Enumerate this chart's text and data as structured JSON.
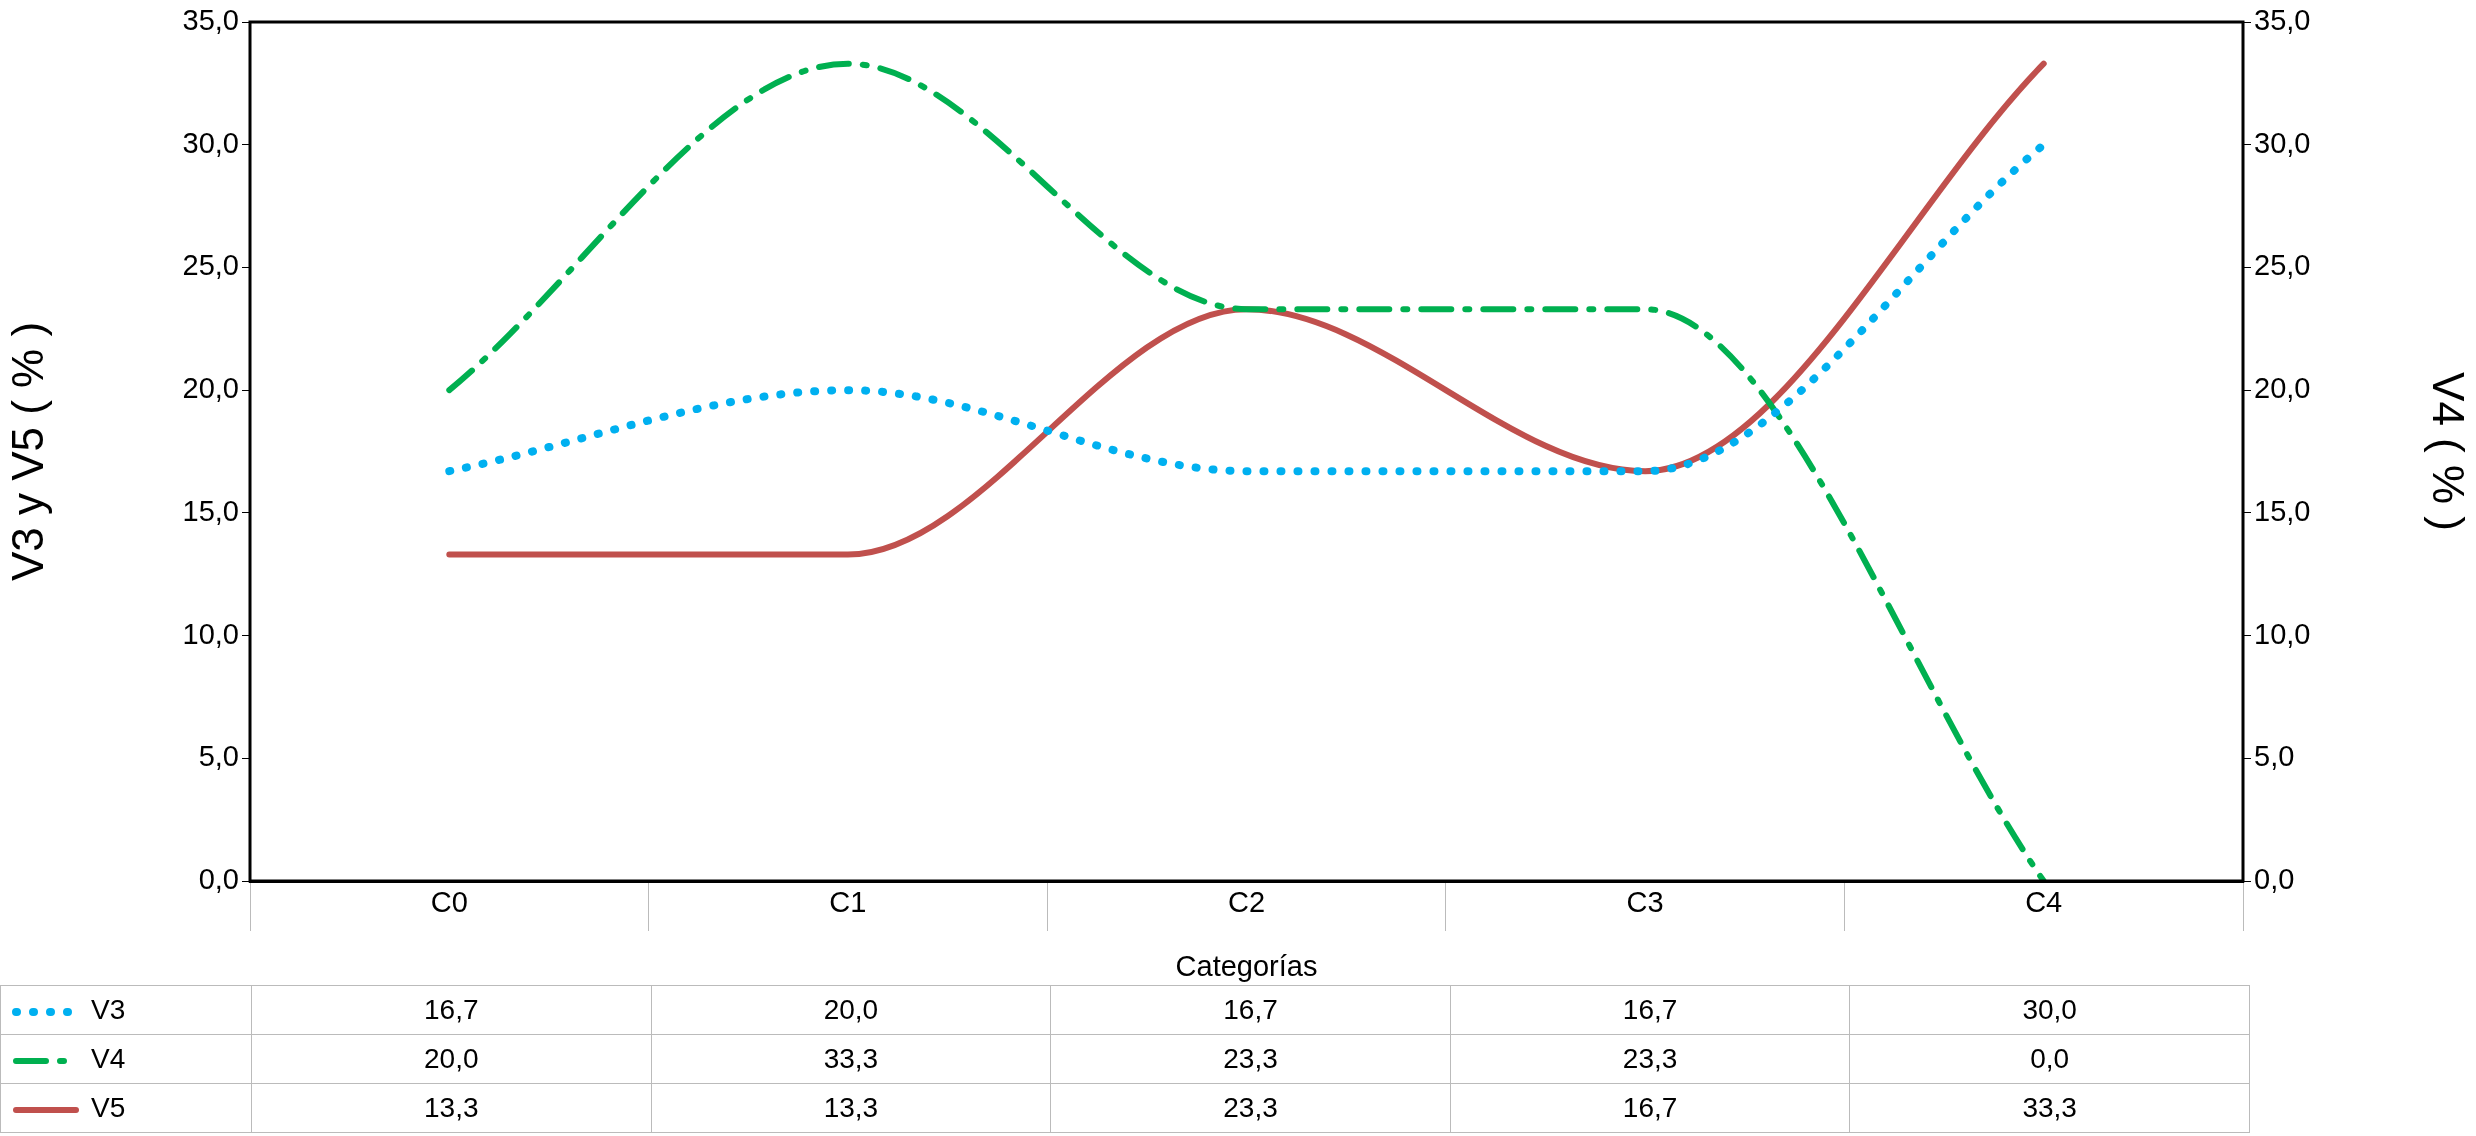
{
  "chart_data": {
    "type": "line",
    "xlabel": "Categorías",
    "ylabel": "V3 y V5 ( % )",
    "y2label": "V4 ( % )",
    "categories": [
      "C0",
      "C1",
      "C2",
      "C3",
      "C4"
    ],
    "series": [
      {
        "name": "V3",
        "color": "#00b0f0",
        "line_style": "dotted",
        "values": [
          16.7,
          20.0,
          16.7,
          16.7,
          30.0
        ],
        "value_labels": [
          "16,7",
          "20,0",
          "16,7",
          "16,7",
          "30,0"
        ]
      },
      {
        "name": "V4",
        "color": "#00b050",
        "line_style": "dashed",
        "axis": "y2",
        "values": [
          20.0,
          33.3,
          23.3,
          23.3,
          0.0
        ],
        "value_labels": [
          "20,0",
          "33,3",
          "23,3",
          "23,3",
          "0,0"
        ]
      },
      {
        "name": "V5",
        "color": "#c0504d",
        "line_style": "solid",
        "values": [
          13.3,
          13.3,
          23.3,
          16.7,
          33.3
        ],
        "value_labels": [
          "13,3",
          "13,3",
          "23,3",
          "16,7",
          "33,3"
        ]
      }
    ],
    "ylim": [
      0,
      35
    ],
    "yticks": [
      {
        "value": 0,
        "label": "0,0"
      },
      {
        "value": 5,
        "label": "5,0"
      },
      {
        "value": 10,
        "label": "10,0"
      },
      {
        "value": 15,
        "label": "15,0"
      },
      {
        "value": 20,
        "label": "20,0"
      },
      {
        "value": 25,
        "label": "25,0"
      },
      {
        "value": 30,
        "label": "30,0"
      },
      {
        "value": 35,
        "label": "35,0"
      }
    ],
    "y2lim": [
      0,
      35
    ],
    "y2ticks": [
      {
        "value": 0,
        "label": "0,0"
      },
      {
        "value": 5,
        "label": "5,0"
      },
      {
        "value": 10,
        "label": "10,0"
      },
      {
        "value": 15,
        "label": "15,0"
      },
      {
        "value": 20,
        "label": "20,0"
      },
      {
        "value": 25,
        "label": "25,0"
      },
      {
        "value": 30,
        "label": "30,0"
      },
      {
        "value": 35,
        "label": "35,0"
      }
    ],
    "legend": "bottom",
    "grid": false,
    "marker": "none"
  }
}
